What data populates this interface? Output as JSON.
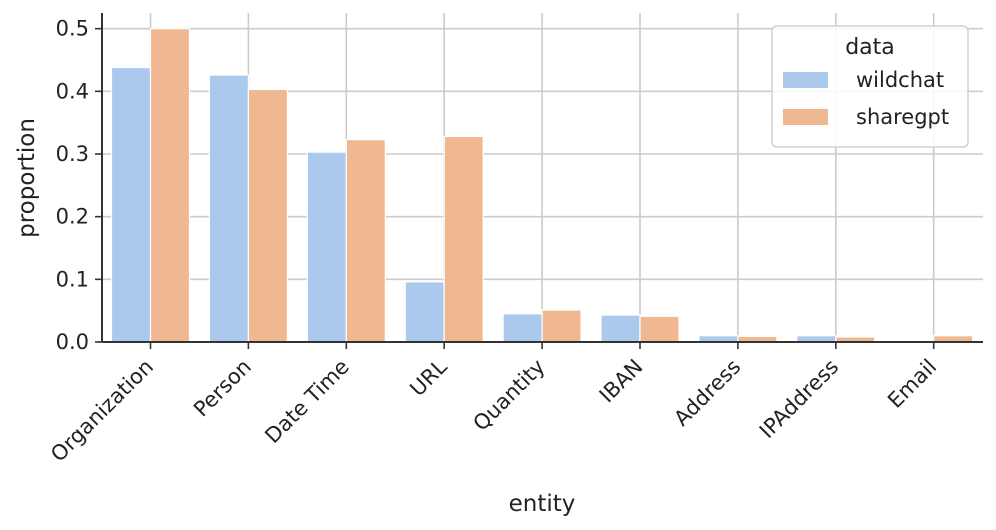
{
  "chart_data": {
    "type": "bar",
    "categories": [
      "Organization",
      "Person",
      "Date Time",
      "URL",
      "Quantity",
      "IBAN",
      "Address",
      "IPAddress",
      "Email"
    ],
    "series": [
      {
        "name": "wildchat",
        "color": "#abc9ed",
        "values": [
          0.438,
          0.426,
          0.303,
          0.096,
          0.045,
          0.043,
          0.01,
          0.01,
          0.0
        ]
      },
      {
        "name": "sharegpt",
        "color": "#f0b891",
        "values": [
          0.5,
          0.403,
          0.323,
          0.328,
          0.051,
          0.041,
          0.009,
          0.008,
          0.01
        ]
      }
    ],
    "xlabel": "entity",
    "ylabel": "proportion",
    "ylim": [
      0,
      0.525
    ],
    "yticks": [
      0.0,
      0.1,
      0.2,
      0.3,
      0.4,
      0.5
    ],
    "ytick_labels": [
      "0.0",
      "0.1",
      "0.2",
      "0.3",
      "0.4",
      "0.5"
    ],
    "grid": true,
    "legend": {
      "title": "data",
      "placement": "top-right"
    }
  }
}
